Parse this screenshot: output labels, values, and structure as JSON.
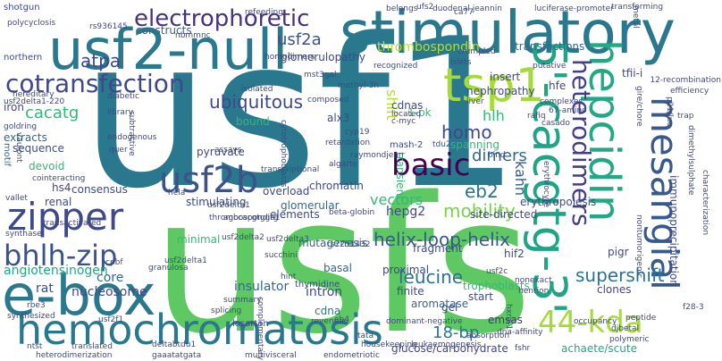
{
  "words": [
    {
      "text": "usf1",
      "color": "#2a788e"
    },
    {
      "text": "usfs",
      "color": "#5ec962"
    },
    {
      "text": "stimulatory",
      "color": "#2a788e"
    },
    {
      "text": "usf2-null",
      "color": "#2a788e"
    },
    {
      "text": "e-box",
      "color": "#2a788e"
    },
    {
      "text": "hemochromatosis",
      "color": "#2a788e"
    },
    {
      "text": "5'-cacgtg-3'",
      "color": "#20a486"
    },
    {
      "text": "hepcidin",
      "color": "#22a884"
    },
    {
      "text": "mesangial",
      "color": "#38598c"
    },
    {
      "text": "tsp1",
      "color": "#a5db36"
    },
    {
      "text": "usf2b",
      "color": "#3b528b"
    },
    {
      "text": "zipper",
      "color": "#3e4989"
    },
    {
      "text": "bhlh-zip",
      "color": "#3b528b"
    },
    {
      "text": "cotransfection",
      "color": "#3e4989"
    },
    {
      "text": "basic",
      "color": "#440154"
    },
    {
      "text": "heterodimers",
      "color": "#433e85"
    },
    {
      "text": "44-kda",
      "color": "#a5db36"
    },
    {
      "text": "electrophoretic",
      "color": "#46327e"
    },
    {
      "text": "ubiquitous",
      "color": "#3e4989"
    },
    {
      "text": "supershift",
      "color": "#2c728e"
    },
    {
      "text": "helix-loop-helix",
      "color": "#38598c"
    },
    {
      "text": "eb2",
      "color": "#2c728e"
    },
    {
      "text": "mobility",
      "color": "#7ad151"
    },
    {
      "text": "leucine",
      "color": "#2c728e"
    },
    {
      "text": "homo",
      "color": "#3e4989"
    },
    {
      "text": "dimers",
      "color": "#31688e"
    },
    {
      "text": "usf2a",
      "color": "#3b528b"
    },
    {
      "text": "atpa",
      "color": "#3e4989"
    },
    {
      "text": "angiotensinogen",
      "color": "#22a884"
    },
    {
      "text": "vectors",
      "color": "#35b779"
    },
    {
      "text": "thrombospondin",
      "color": "#b5de2b"
    },
    {
      "text": "cacatg",
      "color": "#35b779"
    },
    {
      "text": "nucleosome",
      "color": "#3e4989"
    },
    {
      "text": "insulator",
      "color": "#31688e"
    },
    {
      "text": "kahn",
      "color": "#38598c"
    },
    {
      "text": "hlh",
      "color": "#35b779"
    },
    {
      "text": "hepg2",
      "color": "#3e4989"
    },
    {
      "text": "18-bp",
      "color": "#2a788e"
    },
    {
      "text": "immunoprecipitation",
      "color": "#3e4989"
    },
    {
      "text": "achaete/scute",
      "color": "#22a884"
    },
    {
      "text": "glucose/carbohydrate",
      "color": "#3e4989"
    },
    {
      "text": "emsas",
      "color": "#46327e"
    },
    {
      "text": "core",
      "color": "#31688e"
    },
    {
      "text": "rat",
      "color": "#3e4989"
    },
    {
      "text": "shift",
      "color": "#b5de2b"
    },
    {
      "text": "intron",
      "color": "#3e4989"
    },
    {
      "text": "cdna",
      "color": "#2a788e"
    },
    {
      "text": "finite",
      "color": "#3e4989"
    },
    {
      "text": "basal",
      "color": "#31688e"
    },
    {
      "text": "fragment",
      "color": "#3e4989"
    },
    {
      "text": "aromatase",
      "color": "#31688e"
    },
    {
      "text": "start",
      "color": "#3e4989"
    },
    {
      "text": "mutagenesis",
      "color": "#31688e"
    },
    {
      "text": "hif2",
      "color": "#3e4989"
    },
    {
      "text": "pigr",
      "color": "#3e4989"
    },
    {
      "text": "clones",
      "color": "#3e4989"
    },
    {
      "text": "nephropathy",
      "color": "#3e4989"
    },
    {
      "text": "transfections",
      "color": "#31688e"
    },
    {
      "text": "insert",
      "color": "#3e4989"
    },
    {
      "text": "tfii-i",
      "color": "#3e4989"
    },
    {
      "text": "hfe",
      "color": "#3e4989"
    },
    {
      "text": "glomerulopathy",
      "color": "#3e4989"
    },
    {
      "text": "constructs",
      "color": "#31688e"
    },
    {
      "text": "iron",
      "color": "#3e4989"
    },
    {
      "text": "extracts",
      "color": "#31688e"
    },
    {
      "text": "sequence",
      "color": "#3e4989"
    },
    {
      "text": "motif",
      "color": "#31688e"
    },
    {
      "text": "devoid",
      "color": "#35b779"
    },
    {
      "text": "hs4",
      "color": "#3e4989"
    },
    {
      "text": "renal",
      "color": "#3e4989"
    },
    {
      "text": "consensus",
      "color": "#3e4989"
    },
    {
      "text": "pyruvate",
      "color": "#3e4989"
    },
    {
      "text": "chromatin",
      "color": "#3e4989"
    },
    {
      "text": "bound",
      "color": "#35b779"
    },
    {
      "text": "alx3",
      "color": "#3e4989"
    },
    {
      "text": "cdnas",
      "color": "#3e4989"
    },
    {
      "text": "1-pk",
      "color": "#35b779"
    },
    {
      "text": "transient",
      "color": "#35b779"
    },
    {
      "text": "spanning",
      "color": "#35b779"
    },
    {
      "text": "mash-2",
      "color": "#3e4989"
    },
    {
      "text": "overload",
      "color": "#3e4989"
    },
    {
      "text": "glomerular",
      "color": "#31688e"
    },
    {
      "text": "elements",
      "color": "#3e4989"
    },
    {
      "text": "stimulating",
      "color": "#3e4989"
    },
    {
      "text": "minimal",
      "color": "#35b779"
    },
    {
      "text": "site-directed",
      "color": "#3e4989"
    },
    {
      "text": "erythropoiesis",
      "color": "#3e4989"
    },
    {
      "text": "northern",
      "color": "#3e4989"
    },
    {
      "text": "shotgun",
      "color": "#3e4989"
    },
    {
      "text": "gel",
      "color": "#3e4989"
    },
    {
      "text": "proximal",
      "color": "#3e4989"
    },
    {
      "text": "trophoblasts",
      "color": "#35b779"
    },
    {
      "text": "thymidine",
      "color": "#3e4989"
    },
    {
      "text": "losartan",
      "color": "#3e4989"
    },
    {
      "text": "usf2delta1",
      "color": "#3e4989"
    },
    {
      "text": "usf2delta3",
      "color": "#3e4989"
    },
    {
      "text": "rs7251432",
      "color": "#3e4989"
    },
    {
      "text": "thrombospondin1",
      "color": "#3e4989"
    },
    {
      "text": "usf2c",
      "color": "#3e4989"
    },
    {
      "text": "hint",
      "color": "#3e4989"
    },
    {
      "text": "bind",
      "color": "#3e4989"
    },
    {
      "text": "duodenal jeannin",
      "color": "#3e4989"
    },
    {
      "text": "luciferase-promoter",
      "color": "#3e4989"
    },
    {
      "text": "methyl-3h",
      "color": "#3e4989"
    },
    {
      "text": "usf2delta1-220",
      "color": "#3e4989"
    },
    {
      "text": "homodimers",
      "color": "#3e4989"
    },
    {
      "text": "library",
      "color": "#3e4989"
    },
    {
      "text": "diabetic",
      "color": "#3e4989"
    },
    {
      "text": "located",
      "color": "#3e4989"
    },
    {
      "text": "c-myc",
      "color": "#3e4989"
    },
    {
      "text": "retardation",
      "color": "#3e4989"
    },
    {
      "text": "cyp19",
      "color": "#3e4989"
    },
    {
      "text": "raymondjean",
      "color": "#3e4989"
    },
    {
      "text": "algarte",
      "color": "#3e4989"
    },
    {
      "text": "transcriptional",
      "color": "#3e4989"
    },
    {
      "text": "reveneau",
      "color": "#3e4989"
    },
    {
      "text": "granulosa",
      "color": "#3e4989"
    },
    {
      "text": "cpbf",
      "color": "#3e4989"
    },
    {
      "text": "rbe3",
      "color": "#3e4989"
    },
    {
      "text": "synthase",
      "color": "#3e4989"
    },
    {
      "text": "usf2f1",
      "color": "#3e4989"
    },
    {
      "text": "ntst",
      "color": "#3e4989"
    },
    {
      "text": "deltabtdu1",
      "color": "#3e4989"
    },
    {
      "text": "gaaatatgata",
      "color": "#3e4989"
    },
    {
      "text": "multivisceral",
      "color": "#3e4989"
    },
    {
      "text": "endometriotic",
      "color": "#3e4989"
    },
    {
      "text": "tata",
      "color": "#3e4989"
    },
    {
      "text": "absorption",
      "color": "#3e4989"
    },
    {
      "text": "fshr",
      "color": "#3e4989"
    },
    {
      "text": "polymeric",
      "color": "#3e4989"
    },
    {
      "text": "nontumorigenic",
      "color": "#3e4989"
    },
    {
      "text": "dimethylsulphate",
      "color": "#3e4989"
    },
    {
      "text": "characterization",
      "color": "#3e4989"
    },
    {
      "text": "p21/luc",
      "color": "#3e4989"
    },
    {
      "text": "12-recombination",
      "color": "#3e4989"
    },
    {
      "text": "gire/chore",
      "color": "#3e4989"
    },
    {
      "text": "occupancy",
      "color": "#3e4989"
    },
    {
      "text": "peptide",
      "color": "#3e4989"
    },
    {
      "text": "dna-affinity",
      "color": "#3e4989"
    },
    {
      "text": "leukaemogenesis",
      "color": "#3e4989"
    },
    {
      "text": "dominant-negative",
      "color": "#3e4989"
    },
    {
      "text": "nonexact",
      "color": "#3e4989"
    },
    {
      "text": "henrion",
      "color": "#3e4989"
    },
    {
      "text": "erythrocyte",
      "color": "#3e4989"
    },
    {
      "text": "crumpled",
      "color": "#3e4989"
    },
    {
      "text": "islets",
      "color": "#3e4989"
    },
    {
      "text": "recognized",
      "color": "#3e4989"
    },
    {
      "text": "67-amino",
      "color": "#3e4989"
    },
    {
      "text": "belongs",
      "color": "#3e4989"
    },
    {
      "text": "ufs2",
      "color": "#3e4989"
    },
    {
      "text": "metal",
      "color": "#3e4989"
    },
    {
      "text": "transforming",
      "color": "#3e4989"
    },
    {
      "text": "polycyclosis",
      "color": "#3e4989"
    },
    {
      "text": "rs936145",
      "color": "#3e4989"
    },
    {
      "text": "refeeding",
      "color": "#3e4989"
    },
    {
      "text": "mst3gal",
      "color": "#3e4989"
    },
    {
      "text": "goldring",
      "color": "#3e4989"
    },
    {
      "text": "vaulont",
      "color": "#3e4989"
    },
    {
      "text": "quer",
      "color": "#3e4989"
    },
    {
      "text": "endogenous",
      "color": "#3e4989"
    },
    {
      "text": "subtractive",
      "color": "#3e4989"
    },
    {
      "text": "hela",
      "color": "#3e4989"
    },
    {
      "text": "cointeracting",
      "color": "#3e4989"
    },
    {
      "text": "vallet",
      "color": "#3e4989"
    },
    {
      "text": "transactivated",
      "color": "#3e4989"
    },
    {
      "text": "agccacgtggtg",
      "color": "#3e4989"
    },
    {
      "text": "beta-globin",
      "color": "#3e4989"
    },
    {
      "text": "synthesized",
      "color": "#3e4989"
    },
    {
      "text": "translated",
      "color": "#3e4989"
    },
    {
      "text": "heterodimerization",
      "color": "#3e4989"
    },
    {
      "text": "housekeeping",
      "color": "#3e4989"
    },
    {
      "text": "summary",
      "color": "#3e4989"
    },
    {
      "text": "splicing",
      "color": "#3e4989"
    },
    {
      "text": "usf2delta2",
      "color": "#3e4989"
    },
    {
      "text": "complementary",
      "color": "#3e4989"
    },
    {
      "text": "eb4",
      "color": "#3e4989"
    },
    {
      "text": "hxra-1",
      "color": "#3e4989"
    },
    {
      "text": "djbetal",
      "color": "#3e4989"
    },
    {
      "text": "putative",
      "color": "#3e4989"
    },
    {
      "text": "liver",
      "color": "#3e4989"
    },
    {
      "text": "rafiq",
      "color": "#3e4989"
    },
    {
      "text": "complexes",
      "color": "#3e4989"
    },
    {
      "text": "casado",
      "color": "#3e4989"
    },
    {
      "text": "isolated",
      "color": "#3e4989"
    },
    {
      "text": "hereditary",
      "color": "#3e4989"
    },
    {
      "text": "cytotrophoblasts",
      "color": "#3e4989"
    },
    {
      "text": "tdu2",
      "color": "#3e4989"
    },
    {
      "text": "assays",
      "color": "#3e4989"
    },
    {
      "text": "composed",
      "color": "#3e4989"
    },
    {
      "text": "nbmmnc",
      "color": "#3e4989"
    },
    {
      "text": "efficiency",
      "color": "#3e4989"
    },
    {
      "text": "trap",
      "color": "#3e4989"
    },
    {
      "text": "ca77",
      "color": "#3e4989"
    },
    {
      "text": "f28-3",
      "color": "#3e4989"
    },
    {
      "text": "usf2delta1",
      "color": "#3e4989"
    },
    {
      "text": "succhini",
      "color": "#3e4989"
    }
  ]
}
